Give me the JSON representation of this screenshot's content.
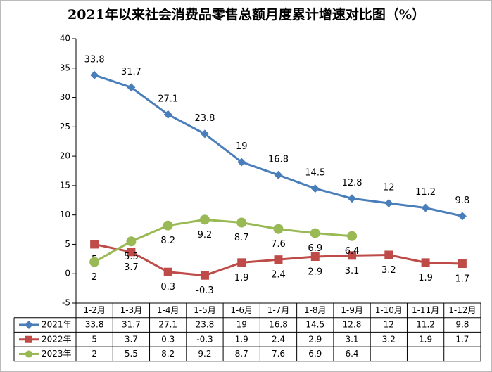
{
  "chart_data": {
    "type": "line",
    "title": "2021年以来社会消费品零售总额月度累计增速对比图（%）",
    "categories": [
      "1-2月",
      "1-3月",
      "1-4月",
      "1-5月",
      "1-6月",
      "1-7月",
      "1-8月",
      "1-9月",
      "1-10月",
      "1-11月",
      "1-12月"
    ],
    "series": [
      {
        "name": "2021年",
        "color": "#4a7ebb",
        "marker": "diamond",
        "values": [
          33.8,
          31.7,
          27.1,
          23.8,
          19,
          16.8,
          14.5,
          12.8,
          12,
          11.2,
          9.8
        ]
      },
      {
        "name": "2022年",
        "color": "#be4b48",
        "marker": "square",
        "values": [
          5,
          3.7,
          0.3,
          -0.3,
          1.9,
          2.4,
          2.9,
          3.1,
          3.2,
          1.9,
          1.7
        ]
      },
      {
        "name": "2023年",
        "color": "#98b954",
        "marker": "circle",
        "values": [
          2,
          5.5,
          8.2,
          9.2,
          8.7,
          7.6,
          6.9,
          6.4,
          null,
          null,
          null
        ]
      }
    ],
    "ylim": [
      -5,
      40
    ],
    "yticks": [
      -5,
      0,
      5,
      10,
      15,
      20,
      25,
      30,
      35,
      40
    ],
    "grid": false,
    "data_table": true
  }
}
